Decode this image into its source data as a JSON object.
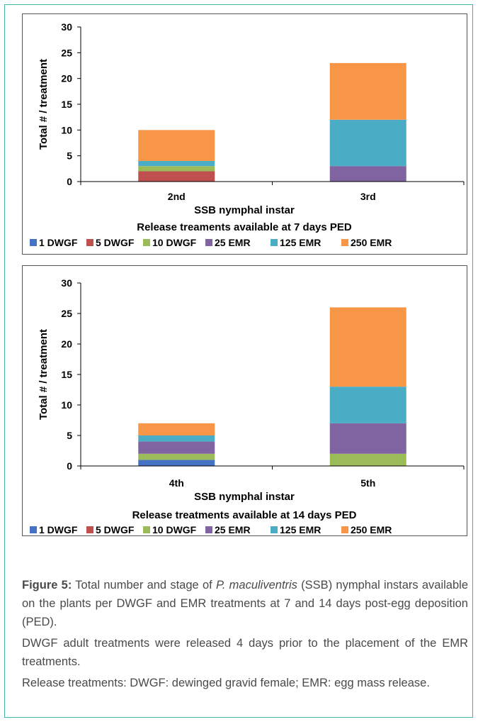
{
  "colors": {
    "frame": "#3fb6a8",
    "series": [
      "#4472c4",
      "#c0504d",
      "#9bbb59",
      "#8064a2",
      "#4bacc6",
      "#f79646"
    ]
  },
  "chart_data": [
    {
      "type": "bar",
      "stacked": true,
      "categories": [
        "2nd",
        "3rd"
      ],
      "xlabel": "SSB nymphal instar",
      "ylabel": "Total # / treatment",
      "ylim": [
        0,
        30
      ],
      "yticks": [
        0,
        5,
        10,
        15,
        20,
        25,
        30
      ],
      "legend_title": "Release treaments available at 7 days PED",
      "legend_position": "bottom",
      "series": [
        {
          "name": "1 DWGF",
          "values": [
            0,
            0
          ]
        },
        {
          "name": "5 DWGF",
          "values": [
            2,
            0
          ]
        },
        {
          "name": "10 DWGF",
          "values": [
            1,
            0
          ]
        },
        {
          "name": "25 EMR",
          "values": [
            0,
            3
          ]
        },
        {
          "name": "125 EMR",
          "values": [
            1,
            9
          ]
        },
        {
          "name": "250 EMR",
          "values": [
            6,
            11
          ]
        }
      ]
    },
    {
      "type": "bar",
      "stacked": true,
      "categories": [
        "4th",
        "5th"
      ],
      "xlabel": "SSB nymphal instar",
      "ylabel": "Total # / treatment",
      "ylim": [
        0,
        30
      ],
      "yticks": [
        0,
        5,
        10,
        15,
        20,
        25,
        30
      ],
      "legend_title": "Release treatments available at 14 days PED",
      "legend_position": "bottom",
      "series": [
        {
          "name": "1 DWGF",
          "values": [
            1,
            0
          ]
        },
        {
          "name": "5 DWGF",
          "values": [
            0,
            0
          ]
        },
        {
          "name": "10 DWGF",
          "values": [
            1,
            2
          ]
        },
        {
          "name": "25 EMR",
          "values": [
            2,
            5
          ]
        },
        {
          "name": "125 EMR",
          "values": [
            1,
            6
          ]
        },
        {
          "name": "250 EMR",
          "values": [
            2,
            13
          ]
        }
      ]
    }
  ],
  "caption": {
    "label": "Figure 5:",
    "text1": " Total number and stage of ",
    "species": "P. maculiventris",
    "text2": " (SSB) nymphal instars available on the plants per DWGF and EMR treatments at 7 and 14 days post-egg deposition (PED).",
    "para2": "DWGF adult treatments were released 4 days prior to the placement of the EMR treatments.",
    "para3": "Release treatments: DWGF: dewinged gravid female; EMR: egg mass release."
  }
}
